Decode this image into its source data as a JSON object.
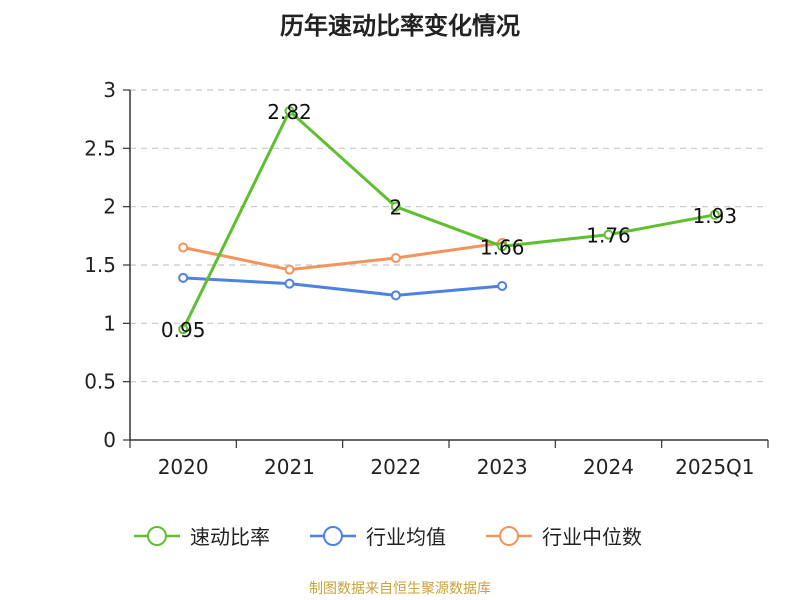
{
  "title": "历年速动比率变化情况",
  "source": "制图数据来自恒生聚源数据库",
  "chart_data": {
    "type": "line",
    "title": "历年速动比率变化情况",
    "xlabel": "",
    "ylabel": "",
    "categories": [
      "2020",
      "2021",
      "2022",
      "2023",
      "2024",
      "2025Q1"
    ],
    "ylim": [
      0,
      3
    ],
    "yticks": [
      "0",
      "0.5",
      "1",
      "1.5",
      "2",
      "2.5",
      "3"
    ],
    "grid": true,
    "legend_position": "bottom",
    "series": [
      {
        "name": "速动比率",
        "color": "#5ec02e",
        "values": [
          0.95,
          2.82,
          2.0,
          1.66,
          1.76,
          1.93
        ],
        "labels": [
          "0.95",
          "2.82",
          "2",
          "1.66",
          "1.76",
          "1.93"
        ]
      },
      {
        "name": "行业均值",
        "color": "#4e82e0",
        "values": [
          1.39,
          1.34,
          1.24,
          1.32,
          null,
          null
        ]
      },
      {
        "name": "行业中位数",
        "color": "#f4935a",
        "values": [
          1.65,
          1.46,
          1.56,
          1.69,
          null,
          null
        ]
      }
    ]
  }
}
